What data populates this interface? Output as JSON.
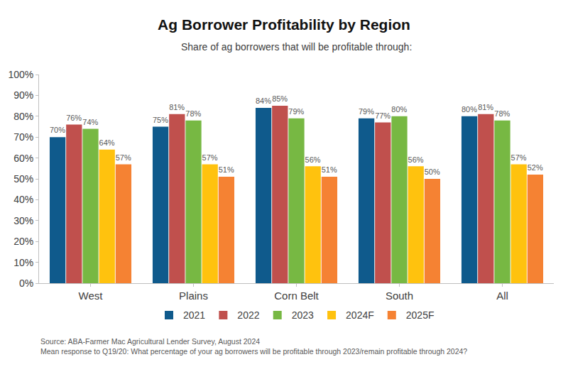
{
  "chart_data": {
    "type": "bar",
    "title": "Ag Borrower Profitability by Region",
    "subtitle": "Share of ag borrowers that will be profitable through:",
    "categories": [
      "West",
      "Plains",
      "Corn Belt",
      "South",
      "All"
    ],
    "series": [
      {
        "name": "2021",
        "color": "#0f5a8c",
        "values": [
          70,
          75,
          84,
          79,
          80
        ],
        "value_labels": [
          "70%",
          "75%",
          "84%",
          "79%",
          "80%"
        ]
      },
      {
        "name": "2022",
        "color": "#c0504d",
        "values": [
          76,
          81,
          85,
          77,
          81
        ],
        "value_labels": [
          "76%",
          "81%",
          "85%",
          "77%",
          "81%"
        ]
      },
      {
        "name": "2023",
        "color": "#77b843",
        "values": [
          74,
          78,
          79,
          80,
          78
        ],
        "value_labels": [
          "74%",
          "78%",
          "79%",
          "80%",
          "78%"
        ]
      },
      {
        "name": "2024F",
        "color": "#ffc20e",
        "values": [
          64,
          57,
          56,
          56,
          57
        ],
        "value_labels": [
          "64%",
          "57%",
          "56%",
          "56%",
          "57%"
        ]
      },
      {
        "name": "2025F",
        "color": "#f58233",
        "values": [
          57,
          51,
          51,
          50,
          52
        ],
        "value_labels": [
          "57%",
          "51%",
          "51%",
          "50%",
          "52%"
        ]
      }
    ],
    "ylim": [
      0,
      100
    ],
    "yticks": [
      {
        "value": 0,
        "label": "0%"
      },
      {
        "value": 10,
        "label": "10%"
      },
      {
        "value": 20,
        "label": "20%"
      },
      {
        "value": 30,
        "label": "30%"
      },
      {
        "value": 40,
        "label": "40%"
      },
      {
        "value": 50,
        "label": "50%"
      },
      {
        "value": 60,
        "label": "60%"
      },
      {
        "value": 70,
        "label": "70%"
      },
      {
        "value": 80,
        "label": "80%"
      },
      {
        "value": 90,
        "label": "90%"
      },
      {
        "value": 100,
        "label": "100%"
      }
    ],
    "grid": false,
    "legend": "bottom",
    "data_labels": true,
    "annotations": [
      "Source: ABA-Farmer Mac Agricultural Lender Survey, August 2024",
      "Mean response to Q19/20: What percentage of your ag borrowers will be profitable through 2023/remain profitable through 2024?"
    ]
  }
}
